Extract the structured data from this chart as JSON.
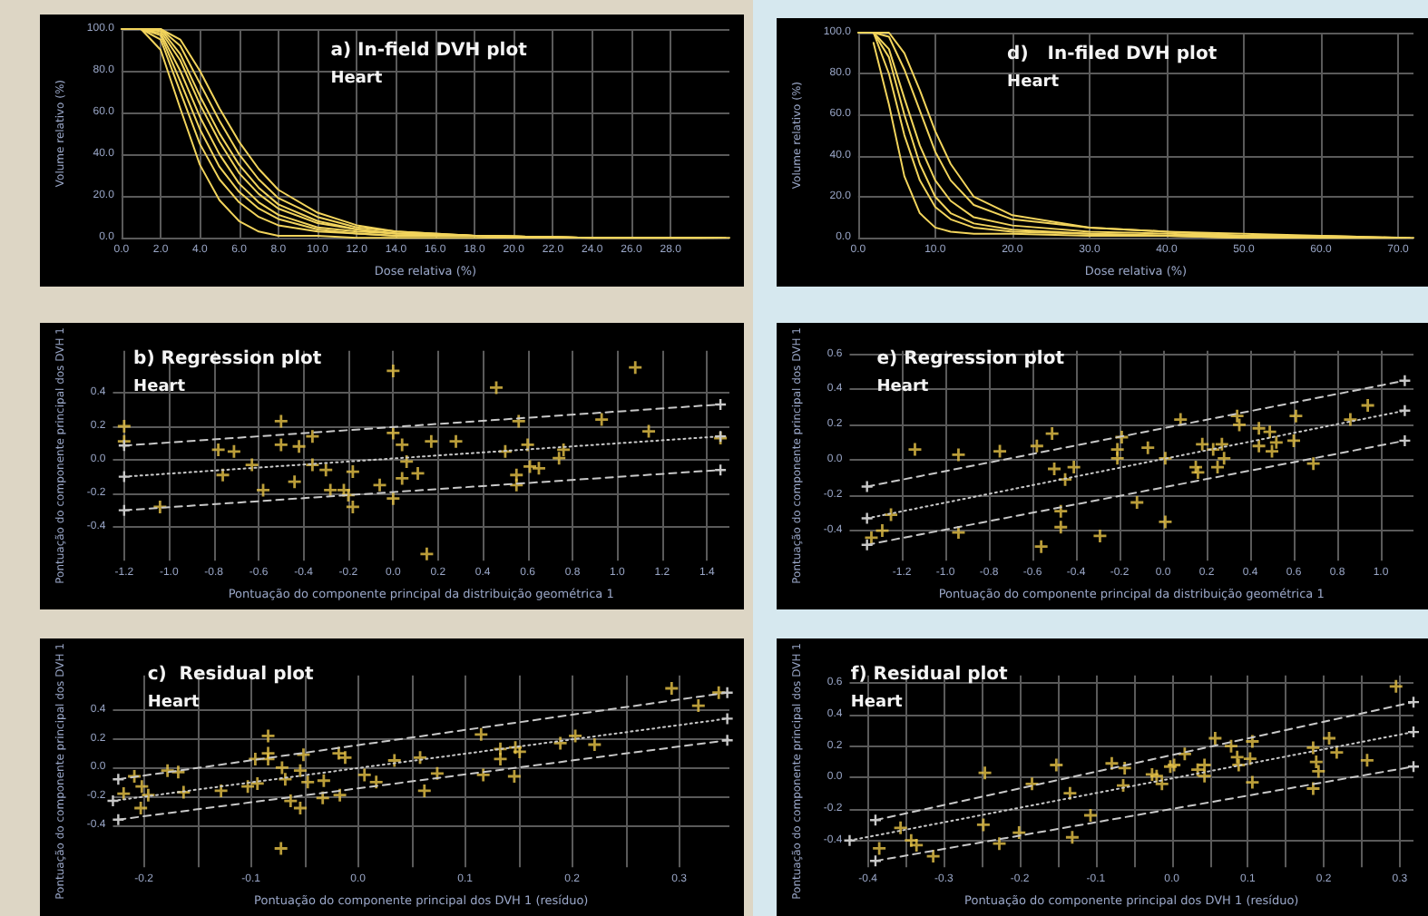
{
  "chart_data": [
    {
      "type": "line",
      "title": "a) In-field DVH plot",
      "subtitle": "Heart",
      "xlabel": "Dose relativa (%)",
      "ylabel": "Volume relativo (%)",
      "marker": "none",
      "grid": true,
      "xlim": [
        0,
        31
      ],
      "ylim": [
        0,
        100
      ],
      "xticks": [
        {
          "value": 0,
          "label": "0.0"
        },
        {
          "value": 2,
          "label": "2.0"
        },
        {
          "value": 4,
          "label": "4.0"
        },
        {
          "value": 6,
          "label": "6.0"
        },
        {
          "value": 8,
          "label": "8.0"
        },
        {
          "value": 10,
          "label": "10.0"
        },
        {
          "value": 12,
          "label": "12.0"
        },
        {
          "value": 14,
          "label": "14.0"
        },
        {
          "value": 16,
          "label": "16.0"
        },
        {
          "value": 18,
          "label": "18.0"
        },
        {
          "value": 20,
          "label": "20.0"
        },
        {
          "value": 22,
          "label": "22.0"
        },
        {
          "value": 24,
          "label": "24.0"
        },
        {
          "value": 26,
          "label": "26.0"
        },
        {
          "value": 28,
          "label": "28.0"
        }
      ],
      "yticks": [
        {
          "value": 0,
          "label": "0.0"
        },
        {
          "value": 20,
          "label": "20.0"
        },
        {
          "value": 40,
          "label": "40.0"
        },
        {
          "value": 60,
          "label": "60.0"
        },
        {
          "value": 80,
          "label": "80.0"
        },
        {
          "value": 100,
          "label": "100.0"
        }
      ],
      "series": [
        {
          "color": "#f2d45c",
          "x": [
            0,
            1,
            2,
            3,
            4,
            5,
            6,
            7,
            8,
            10,
            12,
            14,
            18,
            24,
            31
          ],
          "values": [
            100,
            100,
            95,
            70,
            45,
            28,
            17,
            10,
            6,
            3,
            2,
            1,
            1,
            0,
            0
          ]
        },
        {
          "color": "#f2d45c",
          "x": [
            1,
            2,
            3,
            4,
            5,
            6,
            7,
            8,
            10,
            12,
            14,
            18,
            24,
            30.8
          ],
          "values": [
            100,
            98,
            80,
            58,
            40,
            26,
            17,
            11,
            5,
            3,
            2,
            1,
            0,
            0
          ]
        },
        {
          "color": "#f2d45c",
          "x": [
            1,
            2,
            3,
            4,
            5,
            6,
            7,
            8,
            10,
            12,
            14,
            18,
            24,
            30.6
          ],
          "values": [
            100,
            100,
            88,
            68,
            50,
            35,
            24,
            16,
            8,
            4,
            2,
            1,
            0,
            0
          ]
        },
        {
          "color": "#f2d45c",
          "x": [
            1,
            2,
            3,
            4,
            5,
            6,
            7,
            8,
            10,
            12,
            14,
            18,
            24,
            30.4
          ],
          "values": [
            100,
            100,
            95,
            80,
            62,
            46,
            33,
            23,
            12,
            6,
            3,
            1,
            0,
            0
          ]
        },
        {
          "color": "#f2d45c",
          "x": [
            1,
            2,
            3,
            4,
            5,
            6,
            7,
            8,
            10,
            12,
            14,
            18,
            24,
            30.2
          ],
          "values": [
            100,
            90,
            62,
            35,
            18,
            8,
            3,
            1,
            1,
            0,
            0,
            0,
            0,
            0
          ]
        },
        {
          "color": "#f2d45c",
          "x": [
            1,
            2,
            3,
            4,
            5,
            6,
            7,
            8,
            10,
            12,
            14,
            18,
            24,
            30
          ],
          "values": [
            100,
            97,
            75,
            52,
            34,
            22,
            14,
            9,
            4,
            2,
            1,
            1,
            0,
            0
          ]
        },
        {
          "color": "#f2d45c",
          "x": [
            1,
            2,
            3,
            4,
            5,
            6,
            7,
            8,
            10,
            12,
            14,
            18,
            24,
            29.8
          ],
          "values": [
            100,
            99,
            85,
            64,
            46,
            31,
            21,
            14,
            7,
            4,
            2,
            1,
            0,
            0
          ]
        },
        {
          "color": "#f2d45c",
          "x": [
            1,
            2,
            3,
            4,
            5,
            6,
            7,
            8,
            10,
            12,
            14,
            18,
            24,
            29.6
          ],
          "values": [
            100,
            100,
            92,
            74,
            56,
            40,
            28,
            19,
            10,
            5,
            3,
            1,
            0,
            0
          ]
        }
      ]
    },
    {
      "type": "line",
      "title": "d)   In-filed DVH plot",
      "subtitle": "Heart",
      "xlabel": "Dose relativa (%)",
      "ylabel": "Volume relativo (%)",
      "marker": "none",
      "grid": true,
      "xlim": [
        0,
        72
      ],
      "ylim": [
        0,
        100
      ],
      "xticks": [
        {
          "value": 0,
          "label": "0.0"
        },
        {
          "value": 10,
          "label": "10.0"
        },
        {
          "value": 20,
          "label": "20.0"
        },
        {
          "value": 30,
          "label": "30.0"
        },
        {
          "value": 40,
          "label": "40.0"
        },
        {
          "value": 50,
          "label": "50.0"
        },
        {
          "value": 60,
          "label": "60.0"
        },
        {
          "value": 70,
          "label": "70.0"
        }
      ],
      "yticks": [
        {
          "value": 0,
          "label": "0.0"
        },
        {
          "value": 20,
          "label": "20.0"
        },
        {
          "value": 40,
          "label": "40.0"
        },
        {
          "value": 60,
          "label": "60.0"
        },
        {
          "value": 80,
          "label": "80.0"
        },
        {
          "value": 100,
          "label": "100.0"
        }
      ],
      "series": [
        {
          "color": "#f2d45c",
          "x": [
            0,
            2,
            4,
            6,
            8,
            10,
            12,
            15,
            20,
            30,
            40,
            50,
            60,
            72
          ],
          "values": [
            100,
            100,
            80,
            50,
            28,
            15,
            9,
            5,
            3,
            2,
            1,
            0,
            0,
            0
          ]
        },
        {
          "color": "#f2d45c",
          "x": [
            2,
            4,
            6,
            8,
            10,
            12,
            15,
            20,
            30,
            40,
            50,
            60,
            71.5
          ],
          "values": [
            100,
            92,
            68,
            45,
            28,
            18,
            10,
            6,
            3,
            2,
            1,
            0,
            0
          ]
        },
        {
          "color": "#f2d45c",
          "x": [
            2,
            4,
            6,
            8,
            10,
            12,
            15,
            20,
            30,
            40,
            50,
            60,
            71
          ],
          "values": [
            100,
            98,
            82,
            62,
            42,
            28,
            16,
            9,
            5,
            3,
            1,
            1,
            0
          ]
        },
        {
          "color": "#f2d45c",
          "x": [
            2,
            4,
            6,
            8,
            10,
            12,
            15,
            20,
            30,
            40,
            50,
            60,
            70.5
          ],
          "values": [
            100,
            100,
            90,
            72,
            52,
            36,
            20,
            11,
            5,
            3,
            2,
            1,
            0
          ]
        },
        {
          "color": "#f2d45c",
          "x": [
            2,
            4,
            6,
            8,
            10,
            12,
            15,
            20,
            30,
            40,
            50,
            60,
            70
          ],
          "values": [
            95,
            65,
            30,
            12,
            5,
            3,
            2,
            2,
            1,
            1,
            0,
            0,
            0
          ]
        },
        {
          "color": "#f2d45c",
          "x": [
            2,
            4,
            6,
            8,
            10,
            12,
            15,
            20,
            30,
            40,
            50,
            60,
            69.5
          ],
          "values": [
            100,
            88,
            60,
            36,
            20,
            12,
            7,
            4,
            2,
            1,
            1,
            0,
            0
          ]
        }
      ]
    },
    {
      "type": "scatter",
      "title": "b) Regression plot",
      "subtitle": "Heart",
      "xlabel": "Pontuação do componente principal da distribuição geométrica 1",
      "ylabel": "Pontuação do componente principal dos DVH 1",
      "marker": "cross",
      "grid": true,
      "xlim": [
        -1.25,
        1.5
      ],
      "ylim": [
        -0.6,
        0.65
      ],
      "xticks": [
        {
          "value": -1.2,
          "label": "-1.2"
        },
        {
          "value": -1,
          "label": "-1.0"
        },
        {
          "value": -0.8,
          "label": "-0.8"
        },
        {
          "value": -0.6,
          "label": "-0.6"
        },
        {
          "value": -0.4,
          "label": "-0.4"
        },
        {
          "value": -0.2,
          "label": "-0.2"
        },
        {
          "value": 0,
          "label": "0.0"
        },
        {
          "value": 0.2,
          "label": "0.2"
        },
        {
          "value": 0.4,
          "label": "0.4"
        },
        {
          "value": 0.6,
          "label": "0.6"
        },
        {
          "value": 0.8,
          "label": "0.8"
        },
        {
          "value": 1,
          "label": "1.0"
        },
        {
          "value": 1.2,
          "label": "1.2"
        },
        {
          "value": 1.4,
          "label": "1.4"
        }
      ],
      "yticks": [
        {
          "value": -0.4,
          "label": "-0.4"
        },
        {
          "value": -0.2,
          "label": "-0.2"
        },
        {
          "value": 0,
          "label": "0.0"
        },
        {
          "value": 0.2,
          "label": "0.2"
        },
        {
          "value": 0.4,
          "label": "0.4"
        }
      ],
      "series": [
        {
          "type": "scatter",
          "color": "#e8c447",
          "x": [
            -1.2,
            -1.2,
            -1.04,
            -0.78,
            -0.71,
            -0.76,
            -0.63,
            -0.58,
            -0.5,
            -0.5,
            -0.42,
            -0.44,
            -0.36,
            -0.36,
            -0.3,
            -0.28,
            -0.22,
            -0.2,
            -0.18,
            -0.18,
            -0.06,
            0,
            0,
            0,
            0.04,
            0.04,
            0.06,
            0.11,
            0.15,
            0.17,
            0.28,
            0.46,
            0.5,
            0.55,
            0.55,
            0.56,
            0.6,
            0.61,
            0.65,
            0.74,
            0.76,
            0.93,
            1.08,
            1.14,
            1.46
          ],
          "values": [
            0.2,
            0.11,
            -0.28,
            0.06,
            0.05,
            -0.09,
            -0.03,
            -0.18,
            0.23,
            0.09,
            0.08,
            -0.13,
            0.14,
            -0.03,
            -0.06,
            -0.18,
            -0.18,
            -0.21,
            -0.28,
            -0.07,
            -0.15,
            0.53,
            0.16,
            -0.23,
            0.09,
            -0.11,
            -0.01,
            -0.08,
            -0.56,
            0.11,
            0.11,
            0.43,
            0.05,
            -0.09,
            -0.15,
            0.23,
            0.09,
            -0.04,
            -0.05,
            0.01,
            0.06,
            0.24,
            0.55,
            0.17,
            0.13
          ]
        },
        {
          "type": "line",
          "color": "#c8c8c8",
          "line_style": "dotted",
          "x": [
            -1.2,
            1.46
          ],
          "values": [
            -0.1,
            0.14
          ]
        },
        {
          "type": "line",
          "color": "#c8c8c8",
          "line_style": "dashed",
          "x": [
            -1.2,
            1.46
          ],
          "values": [
            0.085,
            0.33
          ]
        },
        {
          "type": "line",
          "color": "#c8c8c8",
          "line_style": "dashed",
          "x": [
            -1.2,
            1.46
          ],
          "values": [
            -0.3,
            -0.06
          ]
        }
      ]
    },
    {
      "type": "scatter",
      "title": "e) Regression plot",
      "subtitle": "Heart",
      "xlabel": "Pontuação do componente principal da distribuição geométrica 1",
      "ylabel": "Pontuação do componente principal dos DVH 1",
      "marker": "cross",
      "grid": true,
      "xlim": [
        -1.44,
        1.15
      ],
      "ylim": [
        -0.57,
        0.62
      ],
      "xticks": [
        {
          "value": -1.2,
          "label": "-1.2"
        },
        {
          "value": -1,
          "label": "-1.0"
        },
        {
          "value": -0.8,
          "label": "-0.8"
        },
        {
          "value": -0.6,
          "label": "-0.6"
        },
        {
          "value": -0.4,
          "label": "-0.4"
        },
        {
          "value": -0.2,
          "label": "-0.2"
        },
        {
          "value": 0,
          "label": "0.0"
        },
        {
          "value": 0.2,
          "label": "0.2"
        },
        {
          "value": 0.4,
          "label": "0.4"
        },
        {
          "value": 0.6,
          "label": "0.6"
        },
        {
          "value": 0.8,
          "label": "0.8"
        },
        {
          "value": 1,
          "label": "1.0"
        }
      ],
      "yticks": [
        {
          "value": -0.4,
          "label": "-0.4"
        },
        {
          "value": -0.2,
          "label": "-0.2"
        },
        {
          "value": 0,
          "label": "0.0"
        },
        {
          "value": 0.2,
          "label": "0.2"
        },
        {
          "value": 0.4,
          "label": "0.4"
        },
        {
          "value": 0.6,
          "label": "0.6"
        }
      ],
      "series": [
        {
          "type": "scatter",
          "color": "#e8c447",
          "x": [
            -1.34,
            -1.29,
            -1.25,
            -1.14,
            -0.94,
            -0.94,
            -0.75,
            -0.58,
            -0.56,
            -0.51,
            -0.5,
            -0.47,
            -0.47,
            -0.45,
            -0.41,
            -0.29,
            -0.21,
            -0.21,
            -0.19,
            -0.12,
            -0.07,
            0.01,
            0.01,
            0.08,
            0.15,
            0.16,
            0.18,
            0.23,
            0.25,
            0.27,
            0.28,
            0.34,
            0.35,
            0.44,
            0.44,
            0.49,
            0.5,
            0.52,
            0.6,
            0.61,
            0.69,
            0.86,
            0.94
          ],
          "values": [
            -0.44,
            -0.4,
            -0.31,
            0.06,
            -0.41,
            0.03,
            0.05,
            0.08,
            -0.49,
            0.15,
            -0.05,
            -0.29,
            -0.38,
            -0.11,
            -0.04,
            -0.43,
            0.06,
            0.01,
            0.13,
            -0.24,
            0.07,
            0.01,
            -0.35,
            0.23,
            -0.04,
            -0.07,
            0.09,
            0.06,
            -0.04,
            0.09,
            0.01,
            0.25,
            0.2,
            0.18,
            0.08,
            0.16,
            0.05,
            0.1,
            0.11,
            0.25,
            -0.02,
            0.23,
            0.31
          ]
        },
        {
          "type": "line",
          "color": "#c8c8c8",
          "line_style": "dotted",
          "x": [
            -1.36,
            1.11
          ],
          "values": [
            -0.33,
            0.28
          ]
        },
        {
          "type": "line",
          "color": "#c8c8c8",
          "line_style": "dashed",
          "x": [
            -1.36,
            1.11
          ],
          "values": [
            -0.15,
            0.45
          ]
        },
        {
          "type": "line",
          "color": "#c8c8c8",
          "line_style": "dashed",
          "x": [
            -1.36,
            1.11
          ],
          "values": [
            -0.48,
            0.11
          ]
        }
      ]
    },
    {
      "type": "scatter",
      "title": "c)  Residual plot",
      "subtitle": "Heart",
      "xlabel": "Pontuação do componente principal dos DVH 1 (resíduo)",
      "ylabel": "Pontuação do componente principal dos DVH 1",
      "marker": "cross",
      "grid": true,
      "xlim": [
        -0.229,
        0.347
      ],
      "ylim": [
        -0.69,
        0.64
      ],
      "xticks": [
        {
          "value": -0.2,
          "label": "-0.2"
        },
        {
          "value": -0.15,
          "label": null
        },
        {
          "value": -0.1,
          "label": "-0.1"
        },
        {
          "value": -0.05,
          "label": null
        },
        {
          "value": 0,
          "label": "0.0"
        },
        {
          "value": 0.05,
          "label": null
        },
        {
          "value": 0.1,
          "label": "0.1"
        },
        {
          "value": 0.15,
          "label": null
        },
        {
          "value": 0.2,
          "label": "0.2"
        },
        {
          "value": 0.25,
          "label": null
        },
        {
          "value": 0.3,
          "label": "0.3"
        }
      ],
      "yticks": [
        {
          "value": -0.4,
          "label": "-0.4"
        },
        {
          "value": -0.2,
          "label": "-0.2"
        },
        {
          "value": 0,
          "label": "0.0"
        },
        {
          "value": 0.2,
          "label": "0.2"
        },
        {
          "value": 0.4,
          "label": "0.4"
        }
      ],
      "series": [
        {
          "type": "scatter",
          "color": "#e8c447",
          "x": [
            -0.219,
            -0.209,
            -0.202,
            -0.203,
            -0.196,
            -0.178,
            -0.168,
            -0.163,
            -0.128,
            -0.103,
            -0.096,
            -0.094,
            -0.084,
            -0.084,
            -0.084,
            -0.072,
            -0.071,
            -0.068,
            -0.063,
            -0.054,
            -0.054,
            -0.051,
            -0.047,
            -0.032,
            -0.033,
            -0.018,
            -0.017,
            -0.012,
            0.006,
            0.017,
            0.034,
            0.058,
            0.062,
            0.074,
            0.115,
            0.117,
            0.133,
            0.133,
            0.146,
            0.147,
            0.151,
            0.189,
            0.203,
            0.221,
            0.293,
            0.318,
            0.337
          ],
          "values": [
            -0.18,
            -0.06,
            -0.13,
            -0.28,
            -0.19,
            -0.02,
            -0.03,
            -0.17,
            -0.16,
            -0.13,
            0.06,
            -0.11,
            0.22,
            0.06,
            0.1,
            -0.56,
            0,
            -0.08,
            -0.23,
            -0.02,
            -0.28,
            0.09,
            -0.1,
            -0.09,
            -0.21,
            0.1,
            -0.19,
            0.07,
            -0.05,
            -0.1,
            0.05,
            0.07,
            -0.16,
            -0.04,
            0.23,
            -0.05,
            0.13,
            0.06,
            -0.06,
            0.14,
            0.11,
            0.17,
            0.22,
            0.16,
            0.55,
            0.43,
            0.52
          ]
        },
        {
          "type": "line",
          "color": "#c8c8c8",
          "line_style": "dotted",
          "x": [
            -0.229,
            0.345
          ],
          "values": [
            -0.23,
            0.34
          ]
        },
        {
          "type": "line",
          "color": "#c8c8c8",
          "line_style": "dashed",
          "x": [
            -0.224,
            0.345
          ],
          "values": [
            -0.08,
            0.52
          ]
        },
        {
          "type": "line",
          "color": "#c8c8c8",
          "line_style": "dashed",
          "x": [
            -0.224,
            0.345
          ],
          "values": [
            -0.36,
            0.19
          ]
        }
      ]
    },
    {
      "type": "scatter",
      "title": "f) Residual plot",
      "subtitle": "Heart",
      "xlabel": "Pontuação do componente principal dos DVH 1 (resíduo)",
      "ylabel": "Pontuação do componente principal dos DVH 1",
      "marker": "cross",
      "grid": true,
      "xlim": [
        -0.424,
        0.318
      ],
      "ylim": [
        -0.57,
        0.65
      ],
      "xticks": [
        {
          "value": -0.4,
          "label": "-0.4"
        },
        {
          "value": -0.35,
          "label": null
        },
        {
          "value": -0.3,
          "label": "-0.3"
        },
        {
          "value": -0.25,
          "label": null
        },
        {
          "value": -0.2,
          "label": "-0.2"
        },
        {
          "value": -0.15,
          "label": null
        },
        {
          "value": -0.1,
          "label": "-0.1"
        },
        {
          "value": -0.05,
          "label": null
        },
        {
          "value": 0,
          "label": "0.0"
        },
        {
          "value": 0.05,
          "label": null
        },
        {
          "value": 0.1,
          "label": "0.1"
        },
        {
          "value": 0.15,
          "label": null
        },
        {
          "value": 0.2,
          "label": "0.2"
        },
        {
          "value": 0.25,
          "label": null
        },
        {
          "value": 0.3,
          "label": "0.3"
        }
      ],
      "yticks": [
        {
          "value": -0.4,
          "label": "-0.4"
        },
        {
          "value": -0.2,
          "label": "-0.2"
        },
        {
          "value": 0,
          "label": "0.0"
        },
        {
          "value": 0.2,
          "label": "0.2"
        },
        {
          "value": 0.4,
          "label": "0.4"
        },
        {
          "value": 0.6,
          "label": "0.6"
        }
      ],
      "series": [
        {
          "type": "scatter",
          "color": "#e8c447",
          "x": [
            -0.385,
            -0.357,
            -0.343,
            -0.336,
            -0.314,
            -0.246,
            -0.248,
            -0.227,
            -0.201,
            -0.184,
            -0.152,
            -0.134,
            -0.131,
            -0.107,
            -0.079,
            -0.064,
            -0.062,
            -0.026,
            -0.02,
            -0.013,
            -0.002,
            0.003,
            0.017,
            0.034,
            0.043,
            0.043,
            0.057,
            0.078,
            0.086,
            0.088,
            0.103,
            0.106,
            0.106,
            0.186,
            0.19,
            0.193,
            0.186,
            0.207,
            0.217,
            0.257,
            0.295
          ],
          "values": [
            -0.45,
            -0.32,
            -0.4,
            -0.43,
            -0.5,
            0.03,
            -0.3,
            -0.42,
            -0.35,
            -0.04,
            0.08,
            -0.1,
            -0.38,
            -0.24,
            0.09,
            -0.05,
            0.06,
            0.02,
            0.01,
            -0.04,
            0.07,
            0.08,
            0.15,
            0.05,
            0.08,
            0.01,
            0.25,
            0.2,
            0.13,
            0.08,
            0.12,
            0.23,
            -0.03,
            0.19,
            0.1,
            0.04,
            -0.07,
            0.25,
            0.16,
            0.11,
            0.58
          ]
        },
        {
          "type": "line",
          "color": "#c8c8c8",
          "line_style": "dotted",
          "x": [
            -0.424,
            0.318
          ],
          "values": [
            -0.4,
            0.29
          ]
        },
        {
          "type": "line",
          "color": "#c8c8c8",
          "line_style": "dashed",
          "x": [
            -0.39,
            0.318
          ],
          "values": [
            -0.27,
            0.48
          ]
        },
        {
          "type": "line",
          "color": "#c8c8c8",
          "line_style": "dashed",
          "x": [
            -0.39,
            0.318
          ],
          "values": [
            -0.53,
            0.07
          ]
        }
      ]
    }
  ]
}
